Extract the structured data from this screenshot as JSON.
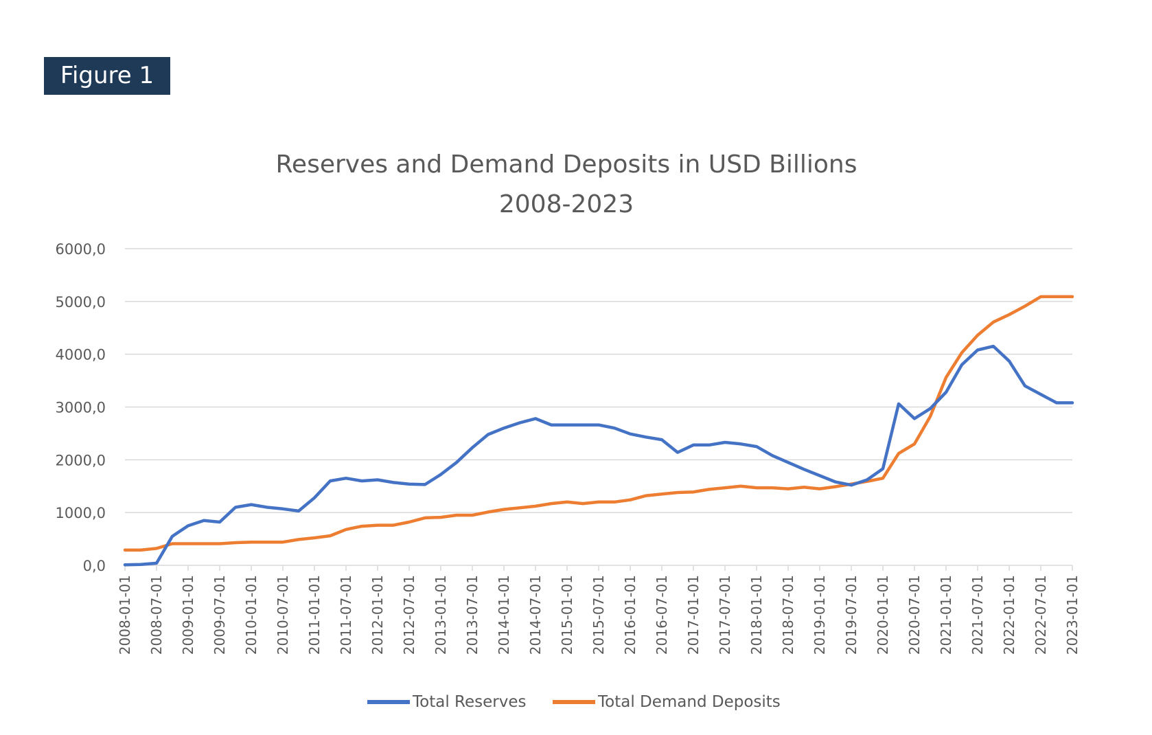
{
  "figure_label": "Figure 1",
  "colors": {
    "badge_bg": "#1f3a57",
    "reserves": "#4472c4",
    "deposits": "#ed7d31",
    "grid": "#d9d9d9",
    "text": "#595959"
  },
  "chart_data": {
    "type": "line",
    "title": "Reserves and Demand Deposits in USD Billions",
    "subtitle": "2008-2023",
    "ylim": [
      0,
      6000
    ],
    "y_ticks": [
      "0,0",
      "1000,0",
      "2000,0",
      "3000,0",
      "4000,0",
      "5000,0",
      "6000,0"
    ],
    "y_tick_values": [
      0,
      1000,
      2000,
      3000,
      4000,
      5000,
      6000
    ],
    "x_tick_labels": [
      "2008-01-01",
      "2008-07-01",
      "2009-01-01",
      "2009-07-01",
      "2010-01-01",
      "2010-07-01",
      "2011-01-01",
      "2011-07-01",
      "2012-01-01",
      "2012-07-01",
      "2013-01-01",
      "2013-07-01",
      "2014-01-01",
      "2014-07-01",
      "2015-01-01",
      "2015-07-01",
      "2016-01-01",
      "2016-07-01",
      "2017-01-01",
      "2017-07-01",
      "2018-01-01",
      "2018-07-01",
      "2019-01-01",
      "2019-07-01",
      "2020-01-01",
      "2020-07-01",
      "2021-01-01",
      "2021-07-01",
      "2022-01-01",
      "2022-07-01",
      "2023-01-01"
    ],
    "x": [
      "2008-01-01",
      "2008-04-01",
      "2008-07-01",
      "2008-10-01",
      "2009-01-01",
      "2009-04-01",
      "2009-07-01",
      "2009-10-01",
      "2010-01-01",
      "2010-04-01",
      "2010-07-01",
      "2010-10-01",
      "2011-01-01",
      "2011-04-01",
      "2011-07-01",
      "2011-10-01",
      "2012-01-01",
      "2012-04-01",
      "2012-07-01",
      "2012-10-01",
      "2013-01-01",
      "2013-04-01",
      "2013-07-01",
      "2013-10-01",
      "2014-01-01",
      "2014-04-01",
      "2014-07-01",
      "2014-10-01",
      "2015-01-01",
      "2015-04-01",
      "2015-07-01",
      "2015-10-01",
      "2016-01-01",
      "2016-04-01",
      "2016-07-01",
      "2016-10-01",
      "2017-01-01",
      "2017-04-01",
      "2017-07-01",
      "2017-10-01",
      "2018-01-01",
      "2018-04-01",
      "2018-07-01",
      "2018-10-01",
      "2019-01-01",
      "2019-04-01",
      "2019-07-01",
      "2019-10-01",
      "2020-01-01",
      "2020-04-01",
      "2020-07-01",
      "2020-10-01",
      "2021-01-01",
      "2021-04-01",
      "2021-07-01",
      "2021-10-01",
      "2022-01-01",
      "2022-04-01",
      "2022-07-01",
      "2022-10-01",
      "2023-01-01"
    ],
    "series": [
      {
        "name": "Total Reserves",
        "color": "#4472c4",
        "values": [
          10,
          15,
          40,
          550,
          750,
          850,
          820,
          1100,
          1150,
          1100,
          1070,
          1030,
          1280,
          1600,
          1650,
          1600,
          1620,
          1570,
          1540,
          1530,
          1720,
          1950,
          2230,
          2480,
          2600,
          2700,
          2780,
          2660,
          2660,
          2660,
          2660,
          2600,
          2490,
          2430,
          2380,
          2140,
          2280,
          2280,
          2330,
          2300,
          2250,
          2080,
          1950,
          1820,
          1700,
          1580,
          1520,
          1620,
          1830,
          3060,
          2780,
          2970,
          3280,
          3800,
          4080,
          4150,
          3870,
          3400,
          3240,
          3080,
          3080
        ]
      },
      {
        "name": "Total Demand Deposits",
        "color": "#ed7d31",
        "values": [
          290,
          290,
          320,
          410,
          410,
          410,
          410,
          430,
          440,
          440,
          440,
          490,
          520,
          560,
          680,
          740,
          760,
          760,
          820,
          900,
          910,
          950,
          950,
          1010,
          1060,
          1090,
          1120,
          1170,
          1200,
          1170,
          1200,
          1200,
          1240,
          1320,
          1350,
          1380,
          1390,
          1440,
          1470,
          1500,
          1470,
          1470,
          1450,
          1480,
          1450,
          1490,
          1540,
          1590,
          1650,
          2120,
          2300,
          2820,
          3560,
          4030,
          4360,
          4610,
          4750,
          4910,
          5090,
          5090,
          5090
        ]
      }
    ],
    "legend_position": "bottom",
    "grid": true
  }
}
